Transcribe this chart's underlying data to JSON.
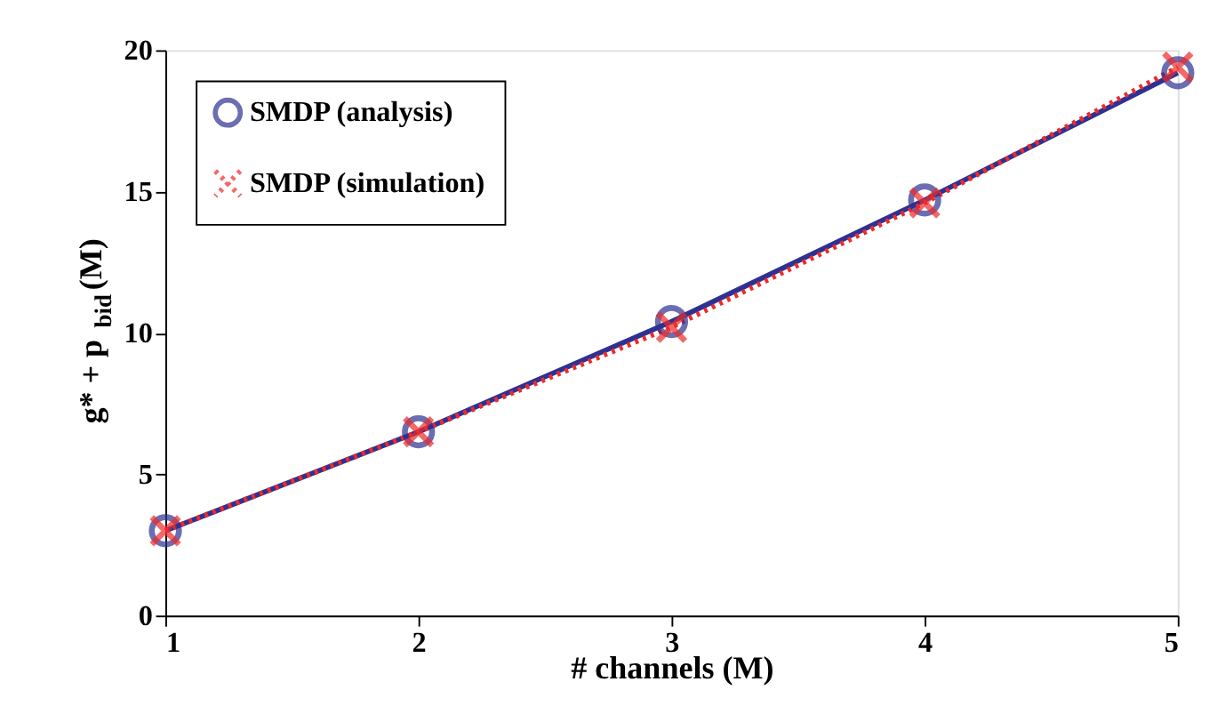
{
  "chart_data": {
    "type": "line",
    "xlabel": "# channels (M)",
    "ylabel": "g* + p$_{bid}$(M)",
    "x": [
      1,
      2,
      3,
      4,
      5
    ],
    "series": [
      {
        "name": "SMDP (analysis)",
        "color": "#2e3192",
        "values": [
          3.0,
          6.5,
          10.4,
          14.7,
          19.2
        ],
        "marker": "circle",
        "line_style": "solid"
      },
      {
        "name": "SMDP (simulation)",
        "color": "#ee2a2a",
        "values": [
          3.0,
          6.5,
          10.2,
          14.6,
          19.4
        ],
        "marker": "cross",
        "line_style": "dotted"
      }
    ],
    "xlim": [
      1,
      5
    ],
    "xticks": [
      1,
      2,
      3,
      4,
      5
    ],
    "ylim": [
      0,
      20
    ],
    "yticks": [
      0,
      5,
      10,
      15,
      20
    ],
    "grid": false,
    "legend": "top left"
  }
}
